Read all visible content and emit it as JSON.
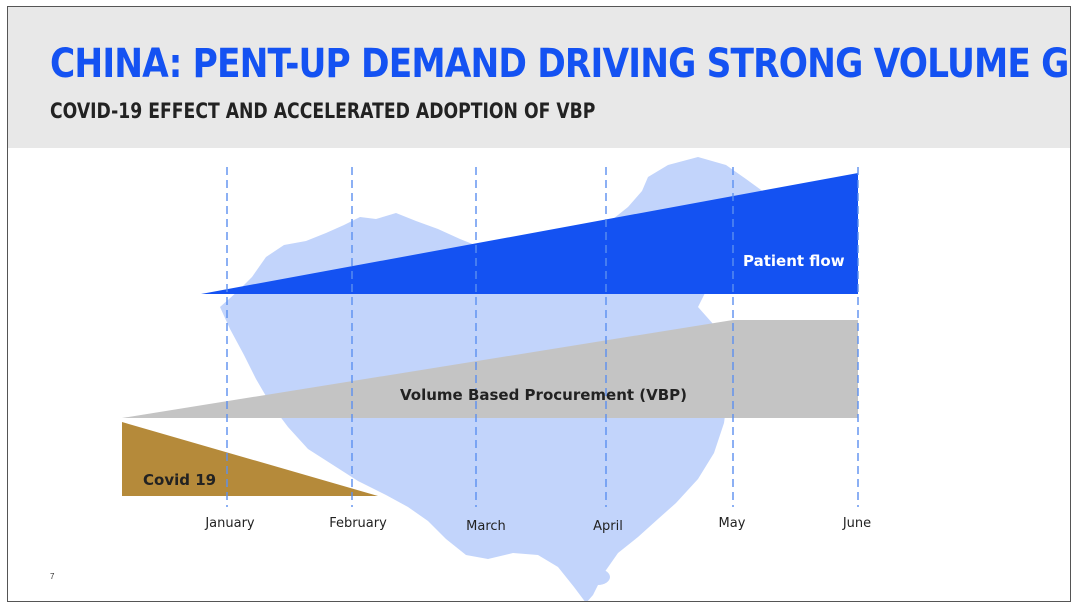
{
  "header": {
    "title": "CHINA: PENT-UP DEMAND DRIVING STRONG VOLUME GROWTH",
    "subtitle": "COVID-19 EFFECT AND ACCELERATED ADOPTION OF VBP"
  },
  "timeline": {
    "months": [
      "January",
      "February",
      "March",
      "April",
      "May",
      "June"
    ]
  },
  "bands": {
    "patient_flow": {
      "label": "Patient flow",
      "color": "#1452f2"
    },
    "vbp": {
      "label": "Volume Based Procurement (VBP)",
      "color": "#c4c4c4"
    },
    "covid": {
      "label": "Covid 19",
      "color": "#b58a3a"
    }
  },
  "colors": {
    "map": "#c2d4fb",
    "gridline": "#5b8ff0",
    "title": "#1452f2"
  },
  "footer": {
    "page_number": "7"
  }
}
